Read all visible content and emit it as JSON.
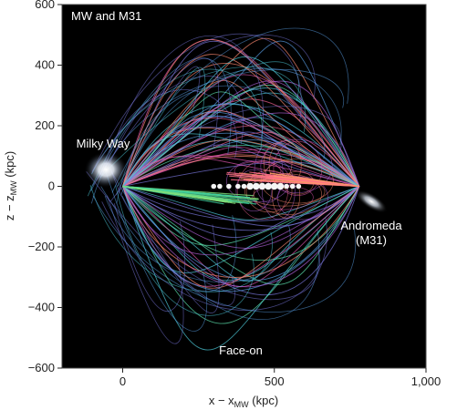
{
  "chart_data": {
    "type": "scatter",
    "title": "MW and M31",
    "subtitle": "Face-on",
    "xlabel_main": "x − x",
    "xlabel_sub": "MW",
    "xlabel_unit": " (kpc)",
    "ylabel_main": "z − z",
    "ylabel_sub": "MW",
    "ylabel_unit": " (kpc)",
    "xlim": [
      -200,
      1000
    ],
    "ylim": [
      -600,
      600
    ],
    "xticks": [
      0,
      500,
      1000
    ],
    "xtick_labels": [
      "0",
      "500",
      "1,000"
    ],
    "yticks": [
      600,
      400,
      200,
      0,
      -200,
      -400,
      -600
    ],
    "ytick_labels": [
      "600",
      "400",
      "200",
      "0",
      "−200",
      "−400",
      "−600"
    ],
    "grid": false,
    "background": "#000000",
    "galaxies": [
      {
        "label": "Milky Way",
        "x": -55,
        "y": 55
      },
      {
        "label": "Andromeda",
        "sub": "(M31)",
        "x": 820,
        "y": -50
      }
    ],
    "trajectory_endpoints": {
      "mw": [
        0,
        0
      ],
      "m31": [
        780,
        0
      ]
    }
  }
}
